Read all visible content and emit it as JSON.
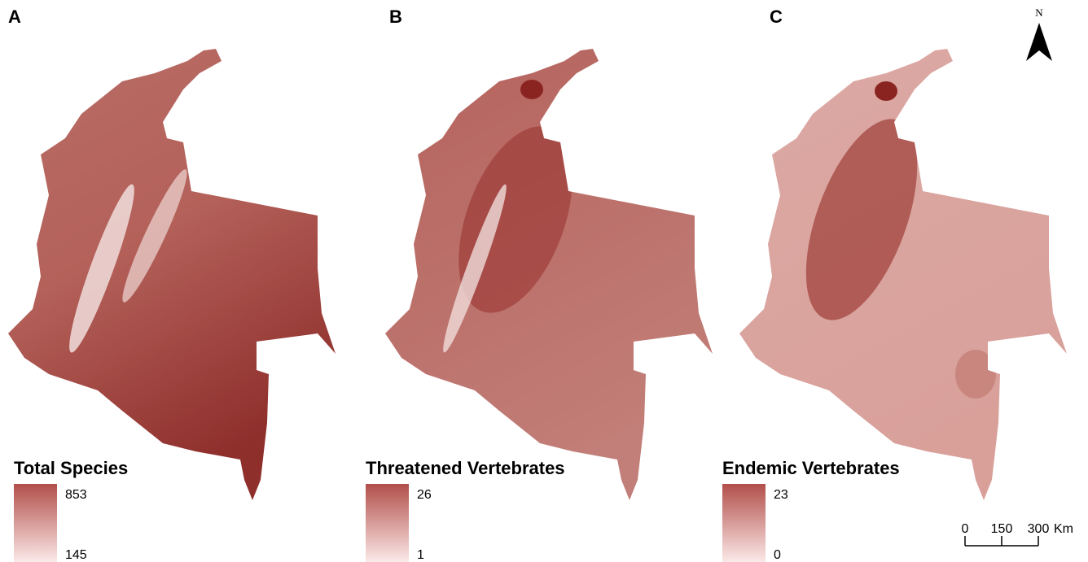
{
  "panels": [
    {
      "label": "A",
      "legend": {
        "title": "Total Species",
        "max": 853,
        "min": 145
      }
    },
    {
      "label": "B",
      "legend": {
        "title": "Threatened Vertebrates",
        "max": 26,
        "min": 1
      }
    },
    {
      "label": "C",
      "legend": {
        "title": "Endemic Vertebrates",
        "max": 23,
        "min": 0
      }
    }
  ],
  "north_arrow": {
    "label": "N"
  },
  "scale_bar": {
    "ticks": [
      0,
      150,
      300
    ],
    "unit": "Km"
  }
}
